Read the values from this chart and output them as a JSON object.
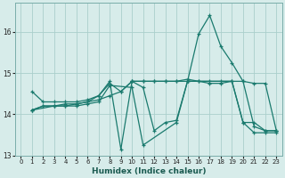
{
  "xlabel": "Humidex (Indice chaleur)",
  "bg_color": "#d7ecea",
  "grid_color": "#aacfcc",
  "line_color": "#1a7a6e",
  "xlim": [
    -0.5,
    23.5
  ],
  "ylim": [
    13.0,
    16.7
  ],
  "yticks": [
    13,
    14,
    15,
    16
  ],
  "xticks": [
    0,
    1,
    2,
    3,
    4,
    5,
    6,
    7,
    8,
    9,
    10,
    11,
    12,
    13,
    14,
    15,
    16,
    17,
    18,
    19,
    20,
    21,
    22,
    23
  ],
  "lines": [
    {
      "x": [
        1,
        2,
        3,
        4,
        5,
        6,
        7,
        8,
        9,
        10,
        11,
        12,
        13,
        14,
        15,
        16,
        17,
        18,
        19,
        20,
        21,
        22,
        23
      ],
      "y": [
        14.55,
        14.3,
        14.3,
        14.3,
        14.3,
        14.35,
        14.45,
        14.75,
        14.55,
        14.8,
        14.8,
        14.8,
        14.8,
        14.8,
        14.85,
        14.8,
        14.75,
        14.75,
        14.8,
        13.8,
        13.8,
        13.6,
        13.6
      ]
    },
    {
      "x": [
        1,
        3,
        4,
        5,
        6,
        7,
        8,
        10,
        11,
        14,
        15,
        20,
        21,
        22,
        23
      ],
      "y": [
        14.1,
        14.2,
        14.2,
        14.2,
        14.25,
        14.3,
        14.7,
        14.65,
        13.25,
        13.8,
        14.8,
        14.8,
        13.7,
        13.6,
        13.6
      ]
    },
    {
      "x": [
        1,
        2,
        3,
        4,
        5,
        6,
        7,
        8,
        9,
        10,
        11,
        12,
        13,
        14,
        15,
        16,
        17,
        18,
        19,
        20,
        21,
        22,
        23
      ],
      "y": [
        14.1,
        14.2,
        14.2,
        14.25,
        14.25,
        14.3,
        14.45,
        14.8,
        13.15,
        14.8,
        14.65,
        13.6,
        13.8,
        13.85,
        14.8,
        15.95,
        16.4,
        15.65,
        15.25,
        14.8,
        14.75,
        14.75,
        13.6
      ]
    },
    {
      "x": [
        1,
        2,
        3,
        4,
        5,
        6,
        7,
        8,
        9,
        10,
        11,
        12,
        13,
        14,
        15,
        16,
        17,
        18,
        19,
        20,
        21,
        22,
        23
      ],
      "y": [
        14.1,
        14.2,
        14.2,
        14.2,
        14.25,
        14.3,
        14.35,
        14.45,
        14.55,
        14.8,
        14.8,
        14.8,
        14.8,
        14.8,
        14.8,
        14.8,
        14.8,
        14.8,
        14.8,
        13.8,
        13.55,
        13.55,
        13.55
      ]
    }
  ]
}
